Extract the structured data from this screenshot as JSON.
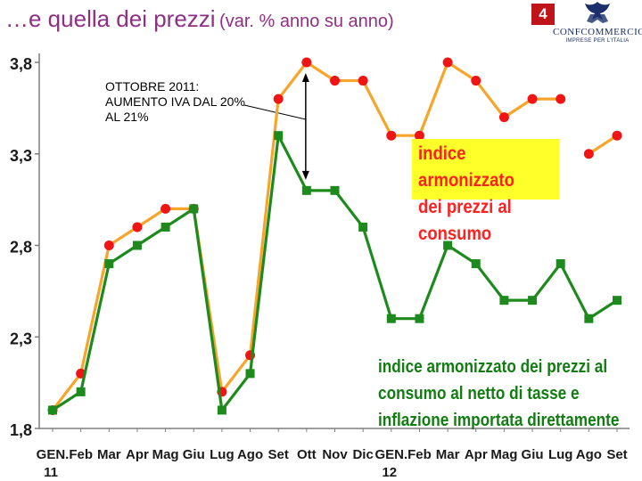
{
  "header": {
    "title": "…e quella dei prezzi",
    "subtitle": "(var. % anno su anno)",
    "slide_number": "4",
    "logo_name": "CONFCOMMERCIO",
    "logo_tagline": "IMPRESE PER L'ITALIA"
  },
  "colors": {
    "title": "#8e2f83",
    "orange_line": "#f7a52a",
    "red_marker": "#f01414",
    "green_line": "#1e8a1e",
    "yellow_box": "#ffff29"
  },
  "annotation": {
    "text": "OTTOBRE 2011: AUMENTO IVA DAL 20% AL 21%"
  },
  "chart_data": {
    "type": "line",
    "categories": [
      "GEN. 11",
      "Feb",
      "Mar",
      "Apr",
      "Mag",
      "Giu",
      "Lug",
      "Ago",
      "Set",
      "Ott",
      "Nov",
      "Dic",
      "GEN. 12",
      "Feb",
      "Mar",
      "Apr",
      "Mag",
      "Giu",
      "Lug",
      "Ago",
      "Set"
    ],
    "category_lines": [
      [
        "GEN.",
        "11"
      ],
      [
        "Feb"
      ],
      [
        "Mar"
      ],
      [
        "Apr"
      ],
      [
        "Mag"
      ],
      [
        "Giu"
      ],
      [
        "Lug"
      ],
      [
        "Ago"
      ],
      [
        "Set"
      ],
      [
        "Ott"
      ],
      [
        "Nov"
      ],
      [
        "Dic"
      ],
      [
        "GEN.",
        "12"
      ],
      [
        "Feb"
      ],
      [
        "Mar"
      ],
      [
        "Apr"
      ],
      [
        "Mag"
      ],
      [
        "Giu"
      ],
      [
        "Lug"
      ],
      [
        "Ago"
      ],
      [
        "Set"
      ]
    ],
    "series": [
      {
        "name": "indice armonizzato dei prezzi al consumo",
        "name_lines": [
          "indice armonizzato",
          "dei prezzi al consumo"
        ],
        "color": "#f7a52a",
        "marker": "circle",
        "values": [
          1.9,
          2.1,
          2.8,
          2.9,
          3.0,
          3.0,
          2.0,
          2.2,
          3.6,
          3.8,
          3.7,
          3.7,
          3.4,
          3.4,
          3.8,
          3.7,
          3.5,
          3.6,
          3.6,
          3.3,
          3.4
        ],
        "gaps_after": [
          18
        ]
      },
      {
        "name": "indice armonizzato dei prezzi al consumo al netto di tasse e inflazione importata direttamente",
        "name_lines": [
          "indice armonizzato dei prezzi al",
          "consumo al netto di tasse e",
          "inflazione importata direttamente"
        ],
        "color": "#1e8a1e",
        "marker": "square",
        "values": [
          1.9,
          2.0,
          2.7,
          2.8,
          2.9,
          3.0,
          1.9,
          2.1,
          3.4,
          3.1,
          3.1,
          2.9,
          2.4,
          2.4,
          2.8,
          2.7,
          2.5,
          2.5,
          2.7,
          2.4,
          2.5
        ]
      }
    ],
    "yticks": [
      "1,8",
      "2,3",
      "2,8",
      "3,3",
      "3,8"
    ],
    "ytick_values": [
      1.8,
      2.3,
      2.8,
      3.3,
      3.8
    ],
    "ylim": [
      1.8,
      3.8
    ],
    "grid": false,
    "legend": "inline labels"
  }
}
